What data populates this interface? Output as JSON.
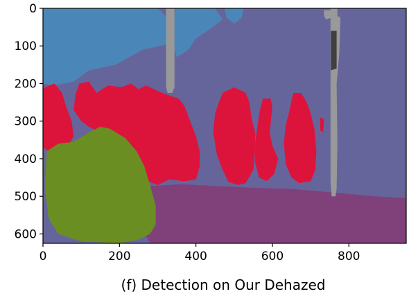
{
  "chart_data": {
    "type": "heatmap",
    "title": "",
    "caption": "(f) Detection on Our Dehazed",
    "xlabel": "",
    "ylabel": "",
    "x_ticks": [
      0,
      200,
      400,
      600,
      800
    ],
    "y_ticks": [
      0,
      100,
      200,
      300,
      400,
      500,
      600
    ],
    "xlim": [
      0,
      950
    ],
    "ylim": [
      625,
      0
    ],
    "grid": false,
    "colors": {
      "sky": "#4a87b8",
      "building": "#66659b",
      "person": "#dc143c",
      "vegetation": "#6b8e23",
      "road": "#80407a",
      "pole": "#999999",
      "dark": "#404040"
    },
    "regions": [
      {
        "label": "building",
        "color": "building",
        "points": [
          [
            0,
            0
          ],
          [
            950,
            0
          ],
          [
            950,
            625
          ],
          [
            0,
            625
          ]
        ]
      },
      {
        "label": "sky",
        "color": "sky",
        "points": [
          [
            0,
            0
          ],
          [
            300,
            0
          ],
          [
            320,
            20
          ],
          [
            390,
            25
          ],
          [
            430,
            45
          ],
          [
            380,
            60
          ],
          [
            330,
            95
          ],
          [
            260,
            110
          ],
          [
            190,
            150
          ],
          [
            120,
            165
          ],
          [
            80,
            195
          ],
          [
            30,
            205
          ],
          [
            0,
            200
          ]
        ]
      },
      {
        "label": "sky",
        "color": "sky",
        "points": [
          [
            345,
            0
          ],
          [
            450,
            0
          ],
          [
            470,
            30
          ],
          [
            430,
            60
          ],
          [
            400,
            80
          ],
          [
            380,
            110
          ],
          [
            350,
            130
          ],
          [
            340,
            100
          ],
          [
            350,
            60
          ],
          [
            345,
            30
          ]
        ]
      },
      {
        "label": "sky",
        "color": "sky",
        "points": [
          [
            475,
            0
          ],
          [
            525,
            0
          ],
          [
            520,
            25
          ],
          [
            500,
            40
          ],
          [
            480,
            25
          ]
        ]
      },
      {
        "label": "road",
        "color": "road",
        "points": [
          [
            250,
            475
          ],
          [
            360,
            468
          ],
          [
            560,
            478
          ],
          [
            650,
            480
          ],
          [
            760,
            490
          ],
          [
            870,
            500
          ],
          [
            950,
            505
          ],
          [
            950,
            625
          ],
          [
            280,
            625
          ],
          [
            250,
            570
          ]
        ]
      },
      {
        "label": "person",
        "color": "person",
        "points": [
          [
            5,
            210
          ],
          [
            30,
            200
          ],
          [
            50,
            225
          ],
          [
            60,
            260
          ],
          [
            75,
            300
          ],
          [
            80,
            340
          ],
          [
            70,
            360
          ],
          [
            45,
            370
          ],
          [
            15,
            380
          ],
          [
            0,
            370
          ],
          [
            0,
            215
          ]
        ]
      },
      {
        "label": "person",
        "color": "person",
        "points": [
          [
            95,
            200
          ],
          [
            120,
            195
          ],
          [
            140,
            225
          ],
          [
            170,
            205
          ],
          [
            205,
            210
          ],
          [
            230,
            200
          ],
          [
            250,
            215
          ],
          [
            270,
            205
          ],
          [
            300,
            220
          ],
          [
            325,
            230
          ],
          [
            355,
            240
          ],
          [
            370,
            260
          ],
          [
            385,
            300
          ],
          [
            400,
            340
          ],
          [
            410,
            380
          ],
          [
            410,
            420
          ],
          [
            400,
            455
          ],
          [
            370,
            460
          ],
          [
            330,
            455
          ],
          [
            300,
            470
          ],
          [
            275,
            460
          ],
          [
            250,
            440
          ],
          [
            240,
            410
          ],
          [
            220,
            380
          ],
          [
            190,
            360
          ],
          [
            150,
            330
          ],
          [
            120,
            315
          ],
          [
            100,
            300
          ],
          [
            80,
            270
          ],
          [
            85,
            230
          ]
        ]
      },
      {
        "label": "person",
        "color": "person",
        "points": [
          [
            470,
            225
          ],
          [
            500,
            210
          ],
          [
            530,
            225
          ],
          [
            540,
            250
          ],
          [
            545,
            290
          ],
          [
            555,
            330
          ],
          [
            555,
            380
          ],
          [
            550,
            430
          ],
          [
            530,
            465
          ],
          [
            510,
            470
          ],
          [
            485,
            462
          ],
          [
            470,
            430
          ],
          [
            455,
            390
          ],
          [
            445,
            330
          ],
          [
            450,
            280
          ],
          [
            460,
            250
          ]
        ]
      },
      {
        "label": "person",
        "color": "person",
        "points": [
          [
            575,
            240
          ],
          [
            595,
            240
          ],
          [
            600,
            260
          ],
          [
            597,
            290
          ],
          [
            593,
            330
          ],
          [
            600,
            365
          ],
          [
            615,
            400
          ],
          [
            605,
            440
          ],
          [
            585,
            460
          ],
          [
            565,
            450
          ],
          [
            555,
            410
          ],
          [
            555,
            360
          ],
          [
            560,
            320
          ],
          [
            565,
            285
          ],
          [
            570,
            260
          ]
        ]
      },
      {
        "label": "person",
        "color": "person",
        "points": [
          [
            655,
            225
          ],
          [
            675,
            225
          ],
          [
            690,
            250
          ],
          [
            700,
            280
          ],
          [
            710,
            320
          ],
          [
            715,
            380
          ],
          [
            712,
            430
          ],
          [
            700,
            460
          ],
          [
            670,
            465
          ],
          [
            650,
            450
          ],
          [
            635,
            415
          ],
          [
            630,
            360
          ],
          [
            635,
            310
          ],
          [
            645,
            270
          ],
          [
            650,
            245
          ]
        ]
      },
      {
        "label": "person",
        "color": "person",
        "points": [
          [
            725,
            290
          ],
          [
            735,
            295
          ],
          [
            733,
            330
          ],
          [
            725,
            325
          ]
        ]
      },
      {
        "label": "vegetation",
        "color": "vegetation",
        "points": [
          [
            10,
            380
          ],
          [
            40,
            360
          ],
          [
            80,
            355
          ],
          [
            120,
            330
          ],
          [
            150,
            315
          ],
          [
            175,
            320
          ],
          [
            215,
            345
          ],
          [
            245,
            380
          ],
          [
            265,
            420
          ],
          [
            280,
            470
          ],
          [
            295,
            525
          ],
          [
            295,
            575
          ],
          [
            280,
            600
          ],
          [
            250,
            615
          ],
          [
            200,
            625
          ],
          [
            100,
            620
          ],
          [
            40,
            600
          ],
          [
            15,
            560
          ],
          [
            5,
            480
          ]
        ]
      },
      {
        "label": "pole",
        "color": "pole",
        "points": [
          [
            322,
            0
          ],
          [
            344,
            0
          ],
          [
            344,
            210
          ],
          [
            338,
            225
          ],
          [
            326,
            225
          ],
          [
            322,
            210
          ]
        ]
      },
      {
        "label": "pole",
        "color": "pole",
        "points": [
          [
            752,
            0
          ],
          [
            770,
            0
          ],
          [
            770,
            20
          ],
          [
            778,
            25
          ],
          [
            775,
            120
          ],
          [
            768,
            200
          ],
          [
            770,
            360
          ],
          [
            768,
            480
          ],
          [
            765,
            500
          ],
          [
            755,
            500
          ],
          [
            752,
            460
          ],
          [
            752,
            120
          ]
        ]
      },
      {
        "label": "pole",
        "color": "pole",
        "points": [
          [
            735,
            5
          ],
          [
            753,
            5
          ],
          [
            753,
            25
          ],
          [
            740,
            30
          ],
          [
            735,
            20
          ]
        ]
      },
      {
        "label": "dark",
        "color": "dark",
        "points": [
          [
            753,
            60
          ],
          [
            768,
            60
          ],
          [
            768,
            160
          ],
          [
            753,
            165
          ]
        ]
      }
    ]
  }
}
